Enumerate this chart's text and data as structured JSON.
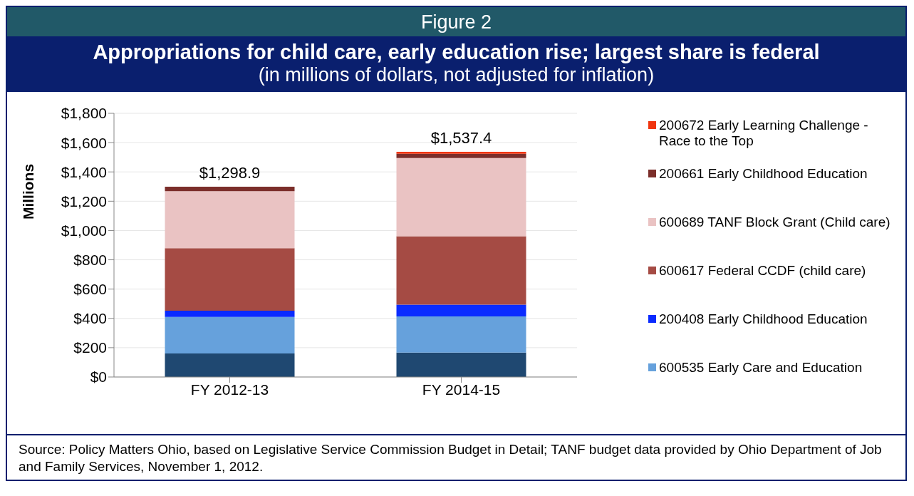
{
  "chart_data": {
    "type": "bar",
    "stacked": true,
    "title": "Appropriations for child care, early education rise; largest share is federal",
    "subtitle": "(in millions of dollars, not adjusted for inflation)",
    "annotations": [
      "Figure 2",
      "Source:  Policy Matters Ohio, based on Legislative Service Commission Budget in Detail; TANF budget data provided by Ohio Department of Job and Family Services, November 1, 2012."
    ],
    "ylabel": "Millions",
    "categories": [
      "FY 2012-13",
      "FY 2014-15"
    ],
    "series": [
      {
        "color": "#1f4871",
        "values": [
          160,
          167
        ]
      },
      {
        "name": "600535 Early Care and Education",
        "color": "#66a1dc",
        "values": [
          250,
          247
        ]
      },
      {
        "name": "200408 Early Childhood Education",
        "color": "#0a2bff",
        "values": [
          43,
          80
        ]
      },
      {
        "name": "600617 Federal CCDF (child care)",
        "color": "#a54b44",
        "values": [
          426,
          467
        ]
      },
      {
        "name": "600689 TANF Block Grant (Child care)",
        "color": "#eac3c3",
        "values": [
          389.9,
          533.4
        ]
      },
      {
        "name": "200661 Early Childhood Education",
        "color": "#7b2e2a",
        "values": [
          30,
          29
        ]
      },
      {
        "name": "200672 Early Learning Challenge - Race to the Top",
        "color": "#f0350f",
        "values": [
          0,
          14
        ]
      }
    ],
    "totals": [
      "$1,298.9",
      "$1,537.4"
    ],
    "ylim": [
      0,
      1800
    ],
    "yticks": [
      {
        "value": 0,
        "label": "$0"
      },
      {
        "value": 200,
        "label": "$200"
      },
      {
        "value": 400,
        "label": "$400"
      },
      {
        "value": 600,
        "label": "$600"
      },
      {
        "value": 800,
        "label": "$800"
      },
      {
        "value": 1000,
        "label": "$1,000"
      },
      {
        "value": 1200,
        "label": "$1,200"
      },
      {
        "value": 1400,
        "label": "$1,400"
      },
      {
        "value": 1600,
        "label": "$1,600"
      },
      {
        "value": 1800,
        "label": "$1,800"
      }
    ],
    "grid": "y",
    "legend": "right"
  }
}
